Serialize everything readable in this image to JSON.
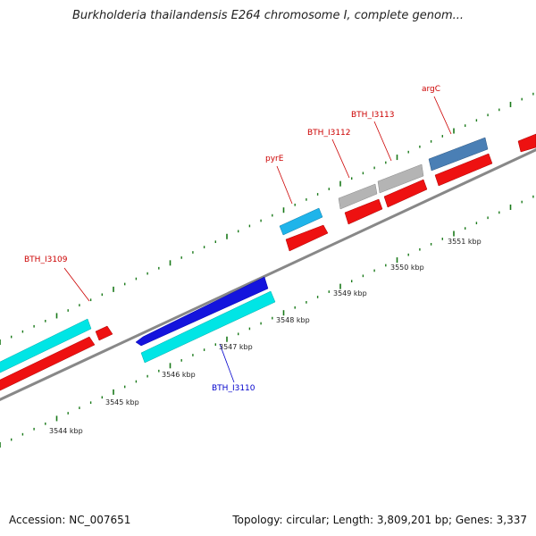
{
  "title": "Burkholderia thailandensis E264 chromosome I, complete genom...",
  "footer": {
    "accession": "Accession: NC_007651",
    "summary": "Topology: circular; Length: 3,809,201 bp; Genes: 3,337"
  },
  "colors": {
    "red": "#ee1111",
    "cyan": "#00e5e5",
    "blue": "#1414dd",
    "lightblue": "#1fb4ea",
    "gray": "#b4b4b4",
    "steel": "#4a7fb5",
    "tick": "#1a7a1a",
    "label_red": "#cc0000",
    "label_blue": "#0000cc"
  },
  "kbp_labels": [
    {
      "text": "3544 kbp"
    },
    {
      "text": "3545 kbp"
    },
    {
      "text": "3546 kbp"
    },
    {
      "text": "3547 kbp"
    },
    {
      "text": "3548 kbp"
    },
    {
      "text": "3549 kbp"
    },
    {
      "text": "3550 kbp"
    },
    {
      "text": "3551 kbp"
    }
  ],
  "gene_labels": [
    {
      "text": "BTH_I3109",
      "color": "red"
    },
    {
      "text": "BTH_I3110",
      "color": "blue"
    },
    {
      "text": "pyrE",
      "color": "red"
    },
    {
      "text": "BTH_I3112",
      "color": "red"
    },
    {
      "text": "BTH_I3113",
      "color": "red"
    },
    {
      "text": "argC",
      "color": "red"
    }
  ]
}
